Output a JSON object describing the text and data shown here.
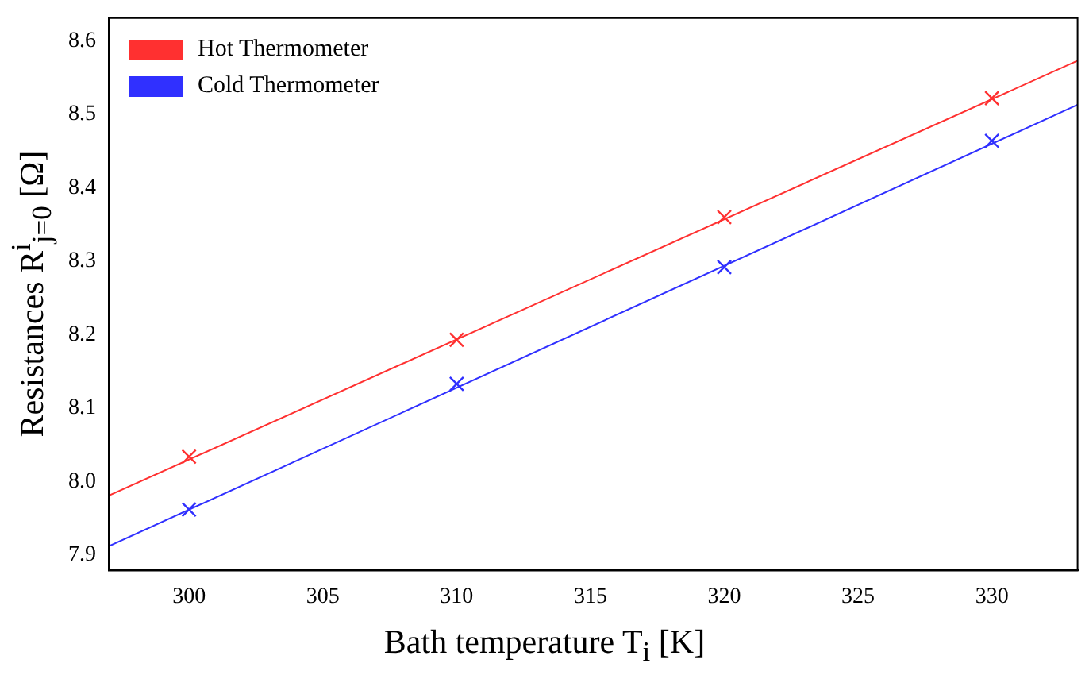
{
  "chart_data": {
    "type": "scatter",
    "xlabel": "Bath temperature T$_{i}$ [K]",
    "ylabel": "Resistances R$^{i}$$_{j=0}$ [Ω]",
    "xlim": [
      297,
      333.2
    ],
    "xticks": [
      300,
      305,
      310,
      315,
      320,
      325,
      330
    ],
    "ylim": [
      7.879,
      8.631
    ],
    "yticks": [
      7.9,
      {
        "value": 8,
        "label": "8.0"
      },
      8.1,
      8.2,
      8.3,
      8.4,
      8.5,
      8.6
    ],
    "grid": false,
    "legend": "top left",
    "marker": "cross",
    "series": [
      {
        "name": "Hot Thermometer",
        "color": "#ff3030",
        "x": [
          300,
          310,
          320,
          330
        ],
        "values": [
          8.034,
          8.193,
          8.36,
          8.522
        ]
      },
      {
        "name": "Cold Thermometer",
        "color": "#3030ff",
        "x": [
          300,
          310,
          320,
          330
        ],
        "values": [
          7.962,
          8.133,
          8.292,
          8.464
        ]
      },
      {
        "type": "line",
        "marker": "none",
        "color": "#ff3030",
        "x": [
          297,
          333.2
        ],
        "values": [
          7.981,
          8.573
        ]
      },
      {
        "type": "line",
        "marker": "none",
        "color": "#3030ff",
        "x": [
          297,
          333.2
        ],
        "values": [
          7.912,
          8.513
        ]
      }
    ]
  }
}
